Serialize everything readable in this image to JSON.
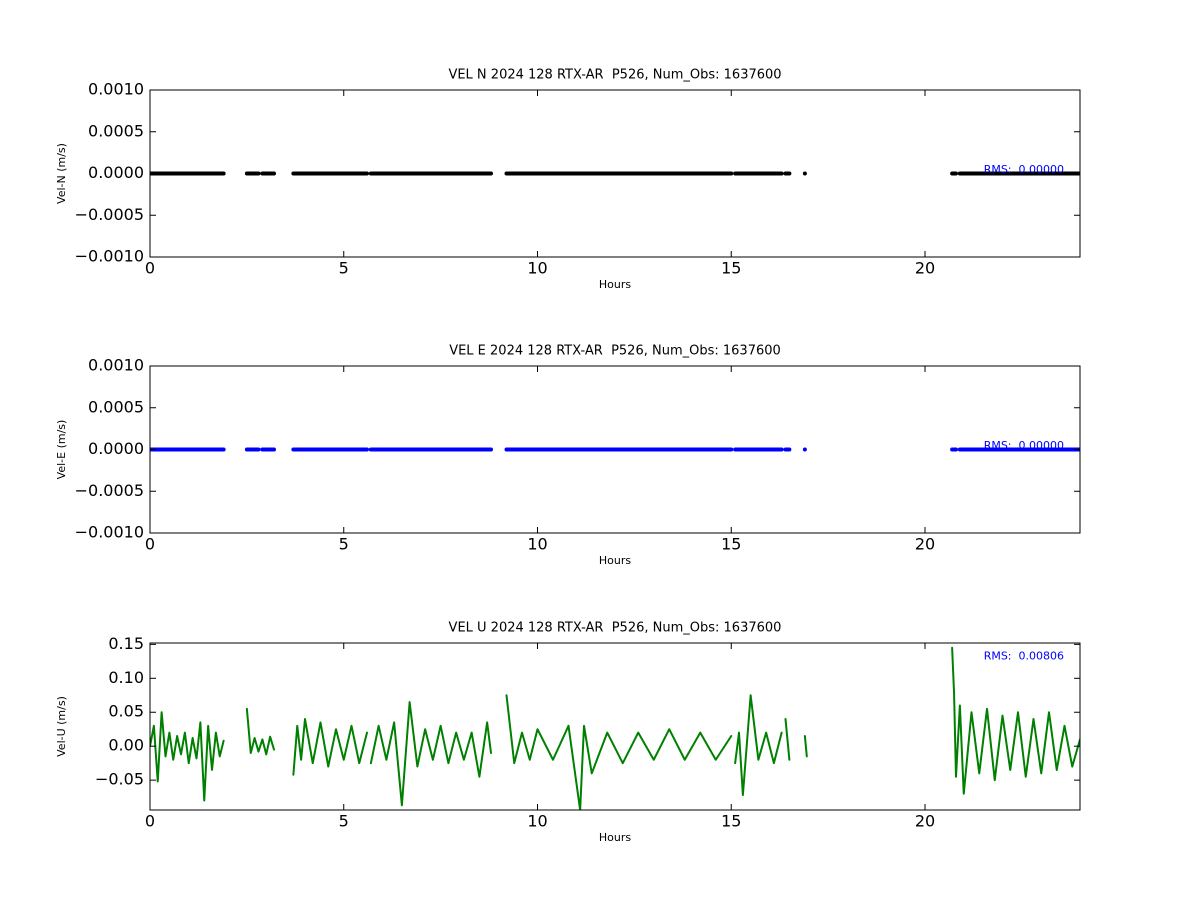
{
  "chart_data": [
    {
      "type": "line",
      "title": "VEL N 2024 128 RTX-AR  P526, Num_Obs: 1637600",
      "xlabel": "Hours",
      "ylabel": "Vel-N (m/s)",
      "annotation": "RMS:  0.00000",
      "xlim": [
        0,
        24
      ],
      "xticks": [
        0,
        5,
        10,
        15,
        20
      ],
      "ylim": [
        -0.001,
        0.001
      ],
      "yticks": [
        {
          "value": 0.001,
          "label": "0.0010"
        },
        {
          "value": 0.0005,
          "label": "0.0005"
        },
        {
          "value": 0,
          "label": "0.0000"
        },
        {
          "value": -0.0005,
          "label": "−0.0005"
        },
        {
          "value": -0.001,
          "label": "−0.0010"
        }
      ],
      "x": [
        0,
        1.9,
        2.2,
        2.5,
        2.8,
        2.85,
        2.9,
        3.2,
        3.5,
        3.7,
        5.6,
        5.65,
        5.7,
        8.8,
        9.0,
        9.2,
        15.0,
        15.05,
        15.1,
        16.3,
        16.35,
        16.4,
        16.5,
        16.7,
        16.9,
        18.8,
        20.7,
        20.8,
        20.85,
        20.9,
        24
      ],
      "series": [
        {
          "color": "#000000",
          "values": [
            0,
            0,
            null,
            0,
            0,
            null,
            0,
            0,
            null,
            0,
            0,
            null,
            0,
            0,
            null,
            0,
            0,
            null,
            0,
            0,
            null,
            0,
            0,
            null,
            0,
            null,
            0,
            0,
            null,
            0,
            0
          ]
        }
      ]
    },
    {
      "type": "line",
      "title": "VEL E 2024 128 RTX-AR  P526, Num_Obs: 1637600",
      "xlabel": "Hours",
      "ylabel": "Vel-E (m/s)",
      "annotation": "RMS:  0.00000",
      "xlim": [
        0,
        24
      ],
      "xticks": [
        0,
        5,
        10,
        15,
        20
      ],
      "ylim": [
        -0.001,
        0.001
      ],
      "yticks": [
        {
          "value": 0.001,
          "label": "0.0010"
        },
        {
          "value": 0.0005,
          "label": "0.0005"
        },
        {
          "value": 0,
          "label": "0.0000"
        },
        {
          "value": -0.0005,
          "label": "−0.0005"
        },
        {
          "value": -0.001,
          "label": "−0.0010"
        }
      ],
      "x": [
        0,
        1.9,
        2.2,
        2.5,
        2.8,
        2.85,
        2.9,
        3.2,
        3.5,
        3.7,
        5.6,
        5.65,
        5.7,
        8.8,
        9.0,
        9.2,
        15.0,
        15.05,
        15.1,
        16.3,
        16.35,
        16.4,
        16.5,
        16.7,
        16.9,
        18.8,
        20.7,
        20.8,
        20.85,
        20.9,
        24
      ],
      "series": [
        {
          "color": "#0000ff",
          "values": [
            0,
            0,
            null,
            0,
            0,
            null,
            0,
            0,
            null,
            0,
            0,
            null,
            0,
            0,
            null,
            0,
            0,
            null,
            0,
            0,
            null,
            0,
            0,
            null,
            0,
            null,
            0,
            0,
            null,
            0,
            0
          ]
        }
      ]
    },
    {
      "type": "line",
      "title": "VEL U 2024 128 RTX-AR  P526, Num_Obs: 1637600",
      "xlabel": "Hours",
      "ylabel": "Vel-U (m/s)",
      "annotation": "RMS:  0.00806",
      "xlim": [
        0,
        24
      ],
      "xticks": [
        0,
        5,
        10,
        15,
        20
      ],
      "ylim": [
        -0.094,
        0.152
      ],
      "yticks": [
        0.15,
        {
          "value": 0.1,
          "label": "0.10"
        },
        0.05,
        {
          "value": 0,
          "label": "0.00"
        },
        {
          "value": -0.05,
          "label": "−0.05"
        }
      ],
      "x": [
        0,
        0.1,
        0.2,
        0.3,
        0.4,
        0.5,
        0.6,
        0.7,
        0.8,
        0.9,
        1.0,
        1.1,
        1.2,
        1.3,
        1.4,
        1.5,
        1.6,
        1.7,
        1.8,
        1.9,
        2.2,
        2.5,
        2.6,
        2.7,
        2.8,
        2.9,
        3.0,
        3.1,
        3.2,
        3.5,
        3.7,
        3.8,
        3.9,
        4.0,
        4.2,
        4.4,
        4.6,
        4.8,
        5.0,
        5.2,
        5.4,
        5.6,
        5.65,
        5.7,
        5.9,
        6.1,
        6.3,
        6.5,
        6.7,
        6.9,
        7.1,
        7.3,
        7.5,
        7.7,
        7.9,
        8.1,
        8.3,
        8.5,
        8.7,
        8.8,
        9.0,
        9.2,
        9.4,
        9.6,
        9.8,
        10.0,
        10.4,
        10.8,
        11.1,
        11.2,
        11.4,
        11.8,
        12.2,
        12.6,
        13.0,
        13.4,
        13.8,
        14.2,
        14.6,
        15.0,
        15.05,
        15.1,
        15.2,
        15.3,
        15.5,
        15.7,
        15.9,
        16.1,
        16.3,
        16.35,
        16.4,
        16.5,
        16.7,
        16.9,
        16.95,
        18.8,
        20.7,
        20.75,
        20.8,
        20.9,
        21.0,
        21.2,
        21.4,
        21.6,
        21.8,
        22.0,
        22.2,
        22.4,
        22.6,
        22.8,
        23.0,
        23.2,
        23.4,
        23.6,
        23.8,
        24.0
      ],
      "series": [
        {
          "color": "#008000",
          "values": [
            0.0,
            0.03,
            -0.052,
            0.05,
            -0.015,
            0.02,
            -0.02,
            0.015,
            -0.012,
            0.02,
            -0.025,
            0.012,
            -0.018,
            0.035,
            -0.08,
            0.03,
            -0.035,
            0.02,
            -0.015,
            0.008,
            null,
            0.055,
            -0.01,
            0.012,
            -0.008,
            0.01,
            -0.012,
            0.014,
            -0.005,
            null,
            -0.042,
            0.03,
            -0.02,
            0.04,
            -0.025,
            0.035,
            -0.03,
            0.025,
            -0.02,
            0.03,
            -0.025,
            0.02,
            null,
            -0.025,
            0.03,
            -0.02,
            0.035,
            -0.087,
            0.065,
            -0.03,
            0.025,
            -0.02,
            0.03,
            -0.025,
            0.02,
            -0.02,
            0.02,
            -0.045,
            0.035,
            -0.01,
            null,
            0.075,
            -0.025,
            0.02,
            -0.02,
            0.025,
            -0.02,
            0.03,
            -0.094,
            0.03,
            -0.04,
            0.02,
            -0.025,
            0.02,
            -0.02,
            0.025,
            -0.02,
            0.02,
            -0.02,
            0.015,
            null,
            -0.025,
            0.02,
            -0.072,
            0.075,
            -0.02,
            0.02,
            -0.025,
            0.02,
            null,
            0.04,
            -0.02,
            null,
            0.015,
            -0.015,
            null,
            0.145,
            0.078,
            -0.045,
            0.06,
            -0.07,
            0.05,
            -0.04,
            0.055,
            -0.05,
            0.045,
            -0.035,
            0.05,
            -0.045,
            0.04,
            -0.04,
            0.05,
            -0.035,
            0.03,
            -0.03,
            0.01
          ]
        }
      ]
    }
  ]
}
